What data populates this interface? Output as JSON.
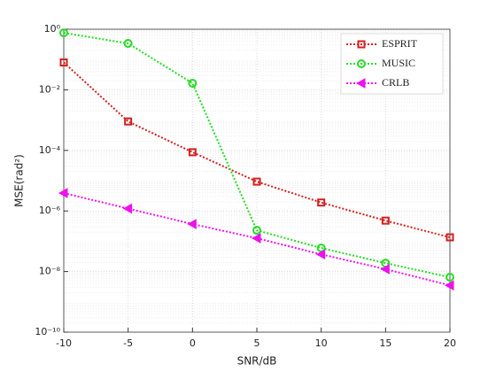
{
  "chart_data": {
    "type": "line",
    "x": [
      -10,
      -5,
      0,
      5,
      10,
      15,
      20
    ],
    "series": [
      {
        "name": "ESPRIT",
        "color": "#d42020",
        "marker": "square",
        "values": [
          0.08,
          0.0009,
          8.7e-05,
          9.3e-06,
          1.9e-06,
          4.8e-07,
          1.35e-07
        ]
      },
      {
        "name": "MUSIC",
        "color": "#22dd22",
        "marker": "circle",
        "values": [
          0.76,
          0.34,
          0.0165,
          2.3e-07,
          6e-08,
          1.9e-08,
          6.5e-09
        ]
      },
      {
        "name": "CRLB",
        "color": "#ee11ee",
        "marker": "triangle-left",
        "values": [
          3.9e-06,
          1.2e-06,
          3.7e-07,
          1.26e-07,
          3.7e-08,
          1.2e-08,
          3.5e-09
        ]
      }
    ],
    "xlabel": "SNR/dB",
    "ylabel": "MSE(rad²)",
    "xlim": [
      -10,
      20
    ],
    "xticks": [
      -10,
      -5,
      0,
      5,
      10,
      15,
      20
    ],
    "ylim": [
      1e-10,
      1
    ],
    "yscale": "log",
    "yticks": [
      {
        "value": 1e-10,
        "label": "10⁻¹⁰"
      },
      {
        "value": 1e-08,
        "label": "10⁻⁸"
      },
      {
        "value": 1e-06,
        "label": "10⁻⁶"
      },
      {
        "value": 0.0001,
        "label": "10⁻⁴"
      },
      {
        "value": 0.01,
        "label": "10⁻²"
      },
      {
        "value": 1,
        "label": "10⁰"
      }
    ],
    "grid": true,
    "minor_grid": true,
    "legend": "northeast"
  }
}
